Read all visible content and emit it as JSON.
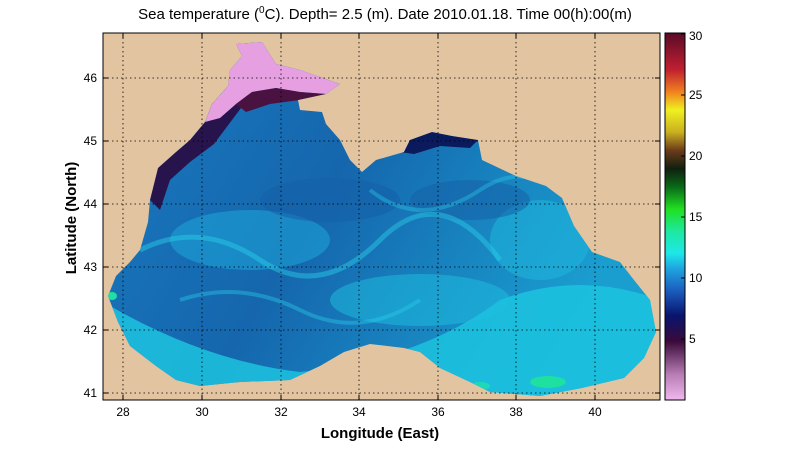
{
  "title": {
    "prefix": "Sea temperature (",
    "sup": "0",
    "suffix": "C). Depth=  2.5 (m). Date 2010.01.18. Time 00(h):00(m)"
  },
  "axes": {
    "xlabel": "Longitude (East)",
    "ylabel": "Latitude (North)",
    "xlim": [
      27.5,
      41.75
    ],
    "ylim": [
      40.9,
      46.65
    ],
    "xticks": [
      "28",
      "30",
      "32",
      "34",
      "36",
      "38",
      "40"
    ],
    "yticks": [
      "41",
      "42",
      "43",
      "44",
      "45",
      "46"
    ],
    "grid": "dotted"
  },
  "colorbar": {
    "range": [
      0,
      30
    ],
    "ticks": [
      "5",
      "10",
      "15",
      "20",
      "25",
      "30"
    ]
  },
  "colors": {
    "land": "#e3c4a0",
    "sea": "#1f78b8",
    "sea_light": "#1ec8e0",
    "sea_cold": "#2a0a40",
    "sea_pink": "#e6a0e2"
  }
}
